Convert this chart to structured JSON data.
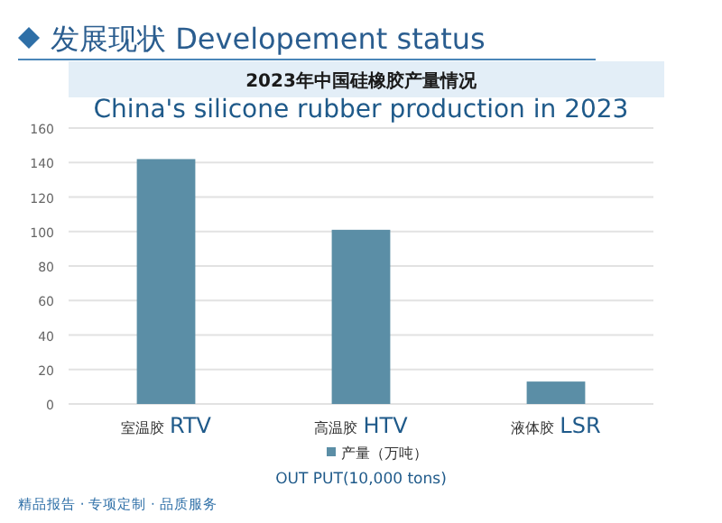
{
  "chart_data": {
    "type": "bar",
    "title": "发展现状 Developement status",
    "subtitle": "2023年中国硅橡胶产量情况\nChina's silicone rubber production in 2023",
    "categories": [
      "室温胶 RTV",
      "高温胶 HTV",
      "液体胶 LSR"
    ],
    "series": [
      {
        "name": "产量（万吨）",
        "color": "#5b8ea6",
        "values": [
          142,
          101,
          13
        ]
      }
    ],
    "xlabel": "OUT PUT(10,000 tons)",
    "ylim": [
      0,
      160
    ],
    "yticks": [
      0,
      20,
      40,
      60,
      80,
      100,
      120,
      140,
      160
    ],
    "grid": "y",
    "legend": "bottom",
    "annotations": [
      "精品报告 · 专项定制 · 品质服务"
    ]
  }
}
